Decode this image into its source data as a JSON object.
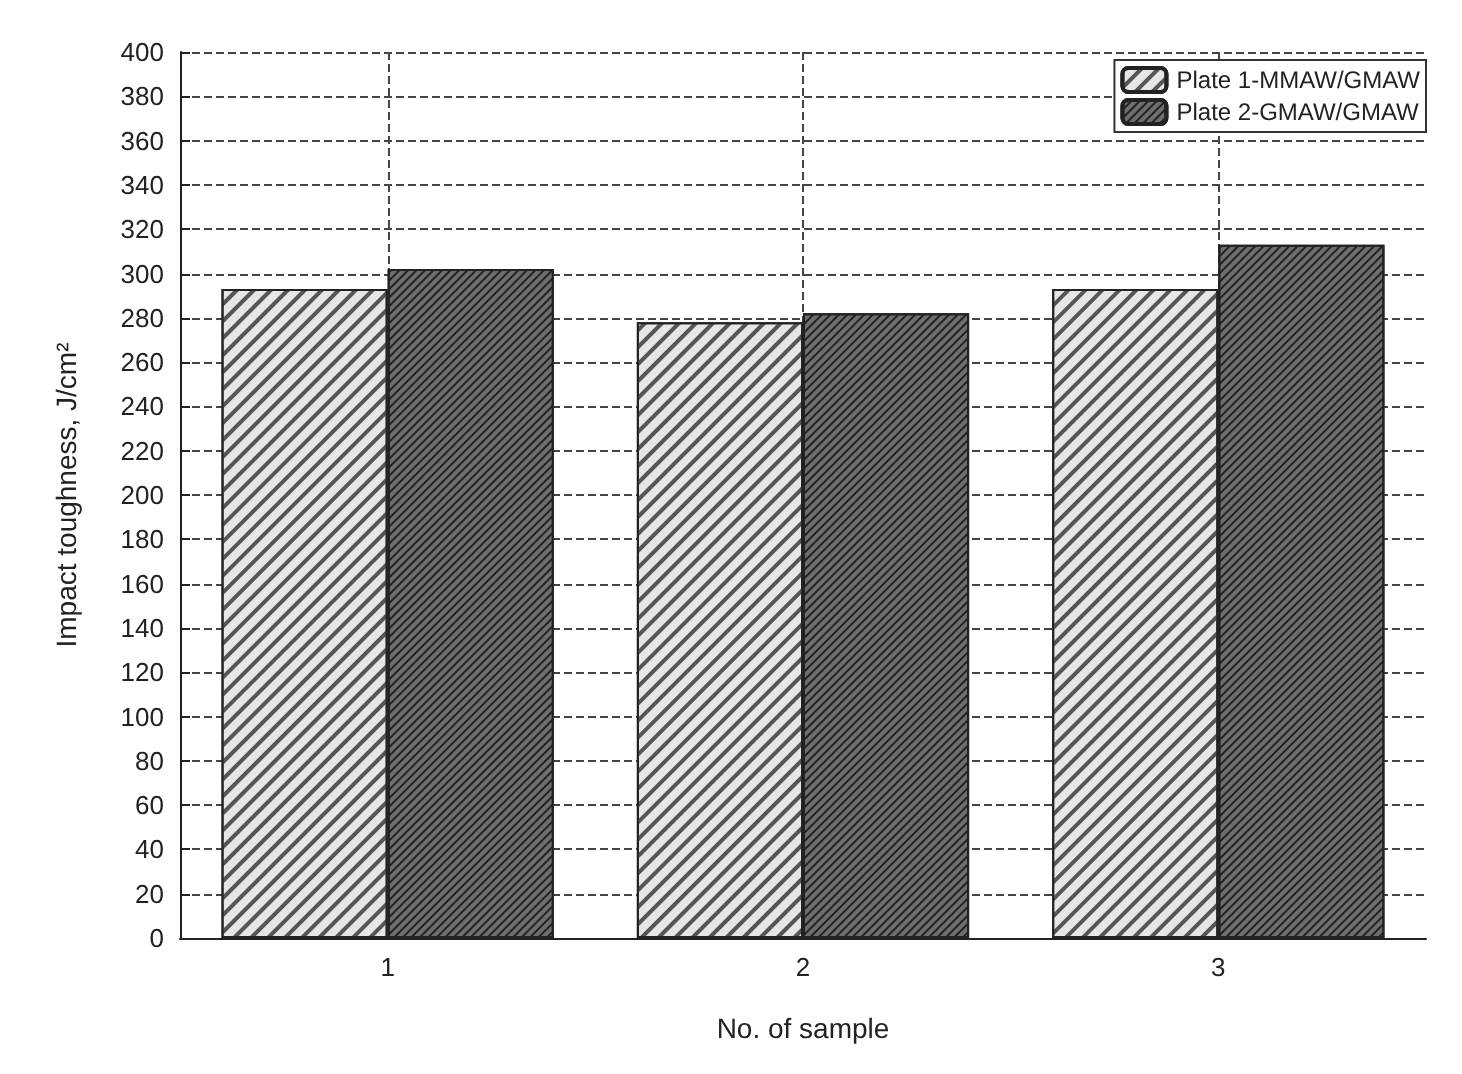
{
  "chart_data": {
    "type": "bar",
    "xlabel": "No. of sample",
    "ylabel": "Impact toughness, J/cm²",
    "categories": [
      "1",
      "2",
      "3"
    ],
    "series": [
      {
        "name": "Plate 1-MMAW/GMAW",
        "color": "#e6e6e6",
        "values": [
          293,
          278,
          293
        ]
      },
      {
        "name": "Plate 2-GMAW/GMAW",
        "color": "#6e6e6e",
        "values": [
          302,
          282,
          313
        ]
      }
    ],
    "ylim": [
      0,
      400
    ],
    "yticks": [
      0,
      20,
      40,
      60,
      80,
      100,
      120,
      140,
      160,
      180,
      200,
      220,
      240,
      260,
      280,
      300,
      320,
      340,
      360,
      380,
      400
    ],
    "grid": true,
    "legend": "top right"
  }
}
